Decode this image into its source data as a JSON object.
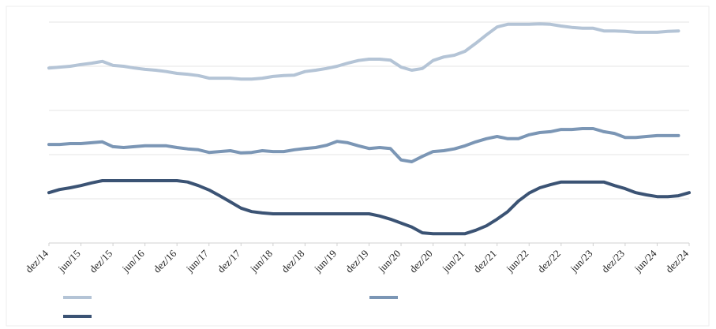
{
  "chart_data": {
    "type": "line",
    "categories": [
      "dez/14",
      null,
      null,
      "jun/15",
      null,
      null,
      "dez/15",
      null,
      null,
      "jun/16",
      null,
      null,
      "dez/16",
      null,
      null,
      "jun/17",
      null,
      null,
      "dez/17",
      null,
      null,
      "jun/18",
      null,
      null,
      "dez/18",
      null,
      null,
      "jun/19",
      null,
      null,
      "dez/19",
      null,
      null,
      "jun/20",
      null,
      null,
      "dez/20",
      null,
      null,
      "jun/21",
      null,
      null,
      "dez/21",
      null,
      null,
      "jun/22",
      null,
      null,
      "dez/22",
      null,
      null,
      "jun/23",
      null,
      null,
      "dez/23",
      null,
      null,
      "jun/24",
      null,
      null,
      "dez/24"
    ],
    "series": [
      {
        "color": "#b4c4d6",
        "values": [
          3.96,
          3.98,
          4.0,
          4.04,
          4.07,
          4.11,
          4.02,
          4.0,
          3.96,
          3.93,
          3.91,
          3.88,
          3.84,
          3.82,
          3.79,
          3.73,
          3.73,
          3.73,
          3.71,
          3.71,
          3.73,
          3.77,
          3.79,
          3.8,
          3.88,
          3.91,
          3.95,
          4.0,
          4.07,
          4.13,
          4.16,
          4.16,
          4.14,
          3.98,
          3.91,
          3.95,
          4.13,
          4.21,
          4.25,
          4.34,
          4.52,
          4.71,
          4.89,
          4.95,
          4.95,
          4.95,
          4.96,
          4.95,
          4.91,
          4.88,
          4.86,
          4.86,
          4.8,
          4.8,
          4.79,
          4.77,
          4.77,
          4.77,
          4.79,
          4.8,
          null
        ]
      },
      {
        "color": "#7b96b5",
        "values": [
          2.23,
          2.23,
          2.25,
          2.25,
          2.27,
          2.29,
          2.18,
          2.16,
          2.18,
          2.2,
          2.2,
          2.2,
          2.16,
          2.13,
          2.11,
          2.05,
          2.07,
          2.09,
          2.04,
          2.05,
          2.09,
          2.07,
          2.07,
          2.11,
          2.14,
          2.16,
          2.21,
          2.3,
          2.27,
          2.2,
          2.14,
          2.16,
          2.14,
          1.88,
          1.84,
          1.96,
          2.07,
          2.09,
          2.13,
          2.2,
          2.29,
          2.36,
          2.41,
          2.36,
          2.36,
          2.45,
          2.5,
          2.52,
          2.57,
          2.57,
          2.59,
          2.59,
          2.52,
          2.48,
          2.39,
          2.39,
          2.41,
          2.43,
          2.43,
          2.43,
          null
        ]
      },
      {
        "color": "#3b5374",
        "values": [
          1.14,
          1.21,
          1.25,
          1.3,
          1.36,
          1.41,
          1.41,
          1.41,
          1.41,
          1.41,
          1.41,
          1.41,
          1.41,
          1.38,
          1.3,
          1.2,
          1.07,
          0.93,
          0.79,
          0.71,
          0.68,
          0.66,
          0.66,
          0.66,
          0.66,
          0.66,
          0.66,
          0.66,
          0.66,
          0.66,
          0.66,
          0.61,
          0.54,
          0.45,
          0.36,
          0.23,
          0.21,
          0.21,
          0.21,
          0.21,
          0.29,
          0.39,
          0.54,
          0.71,
          0.95,
          1.13,
          1.25,
          1.32,
          1.38,
          1.38,
          1.38,
          1.38,
          1.38,
          1.3,
          1.23,
          1.14,
          1.09,
          1.05,
          1.05,
          1.07,
          1.14
        ]
      }
    ],
    "ylim": [
      0,
      5
    ],
    "yticks": [
      1,
      2,
      3,
      4,
      5
    ],
    "grid": true
  }
}
